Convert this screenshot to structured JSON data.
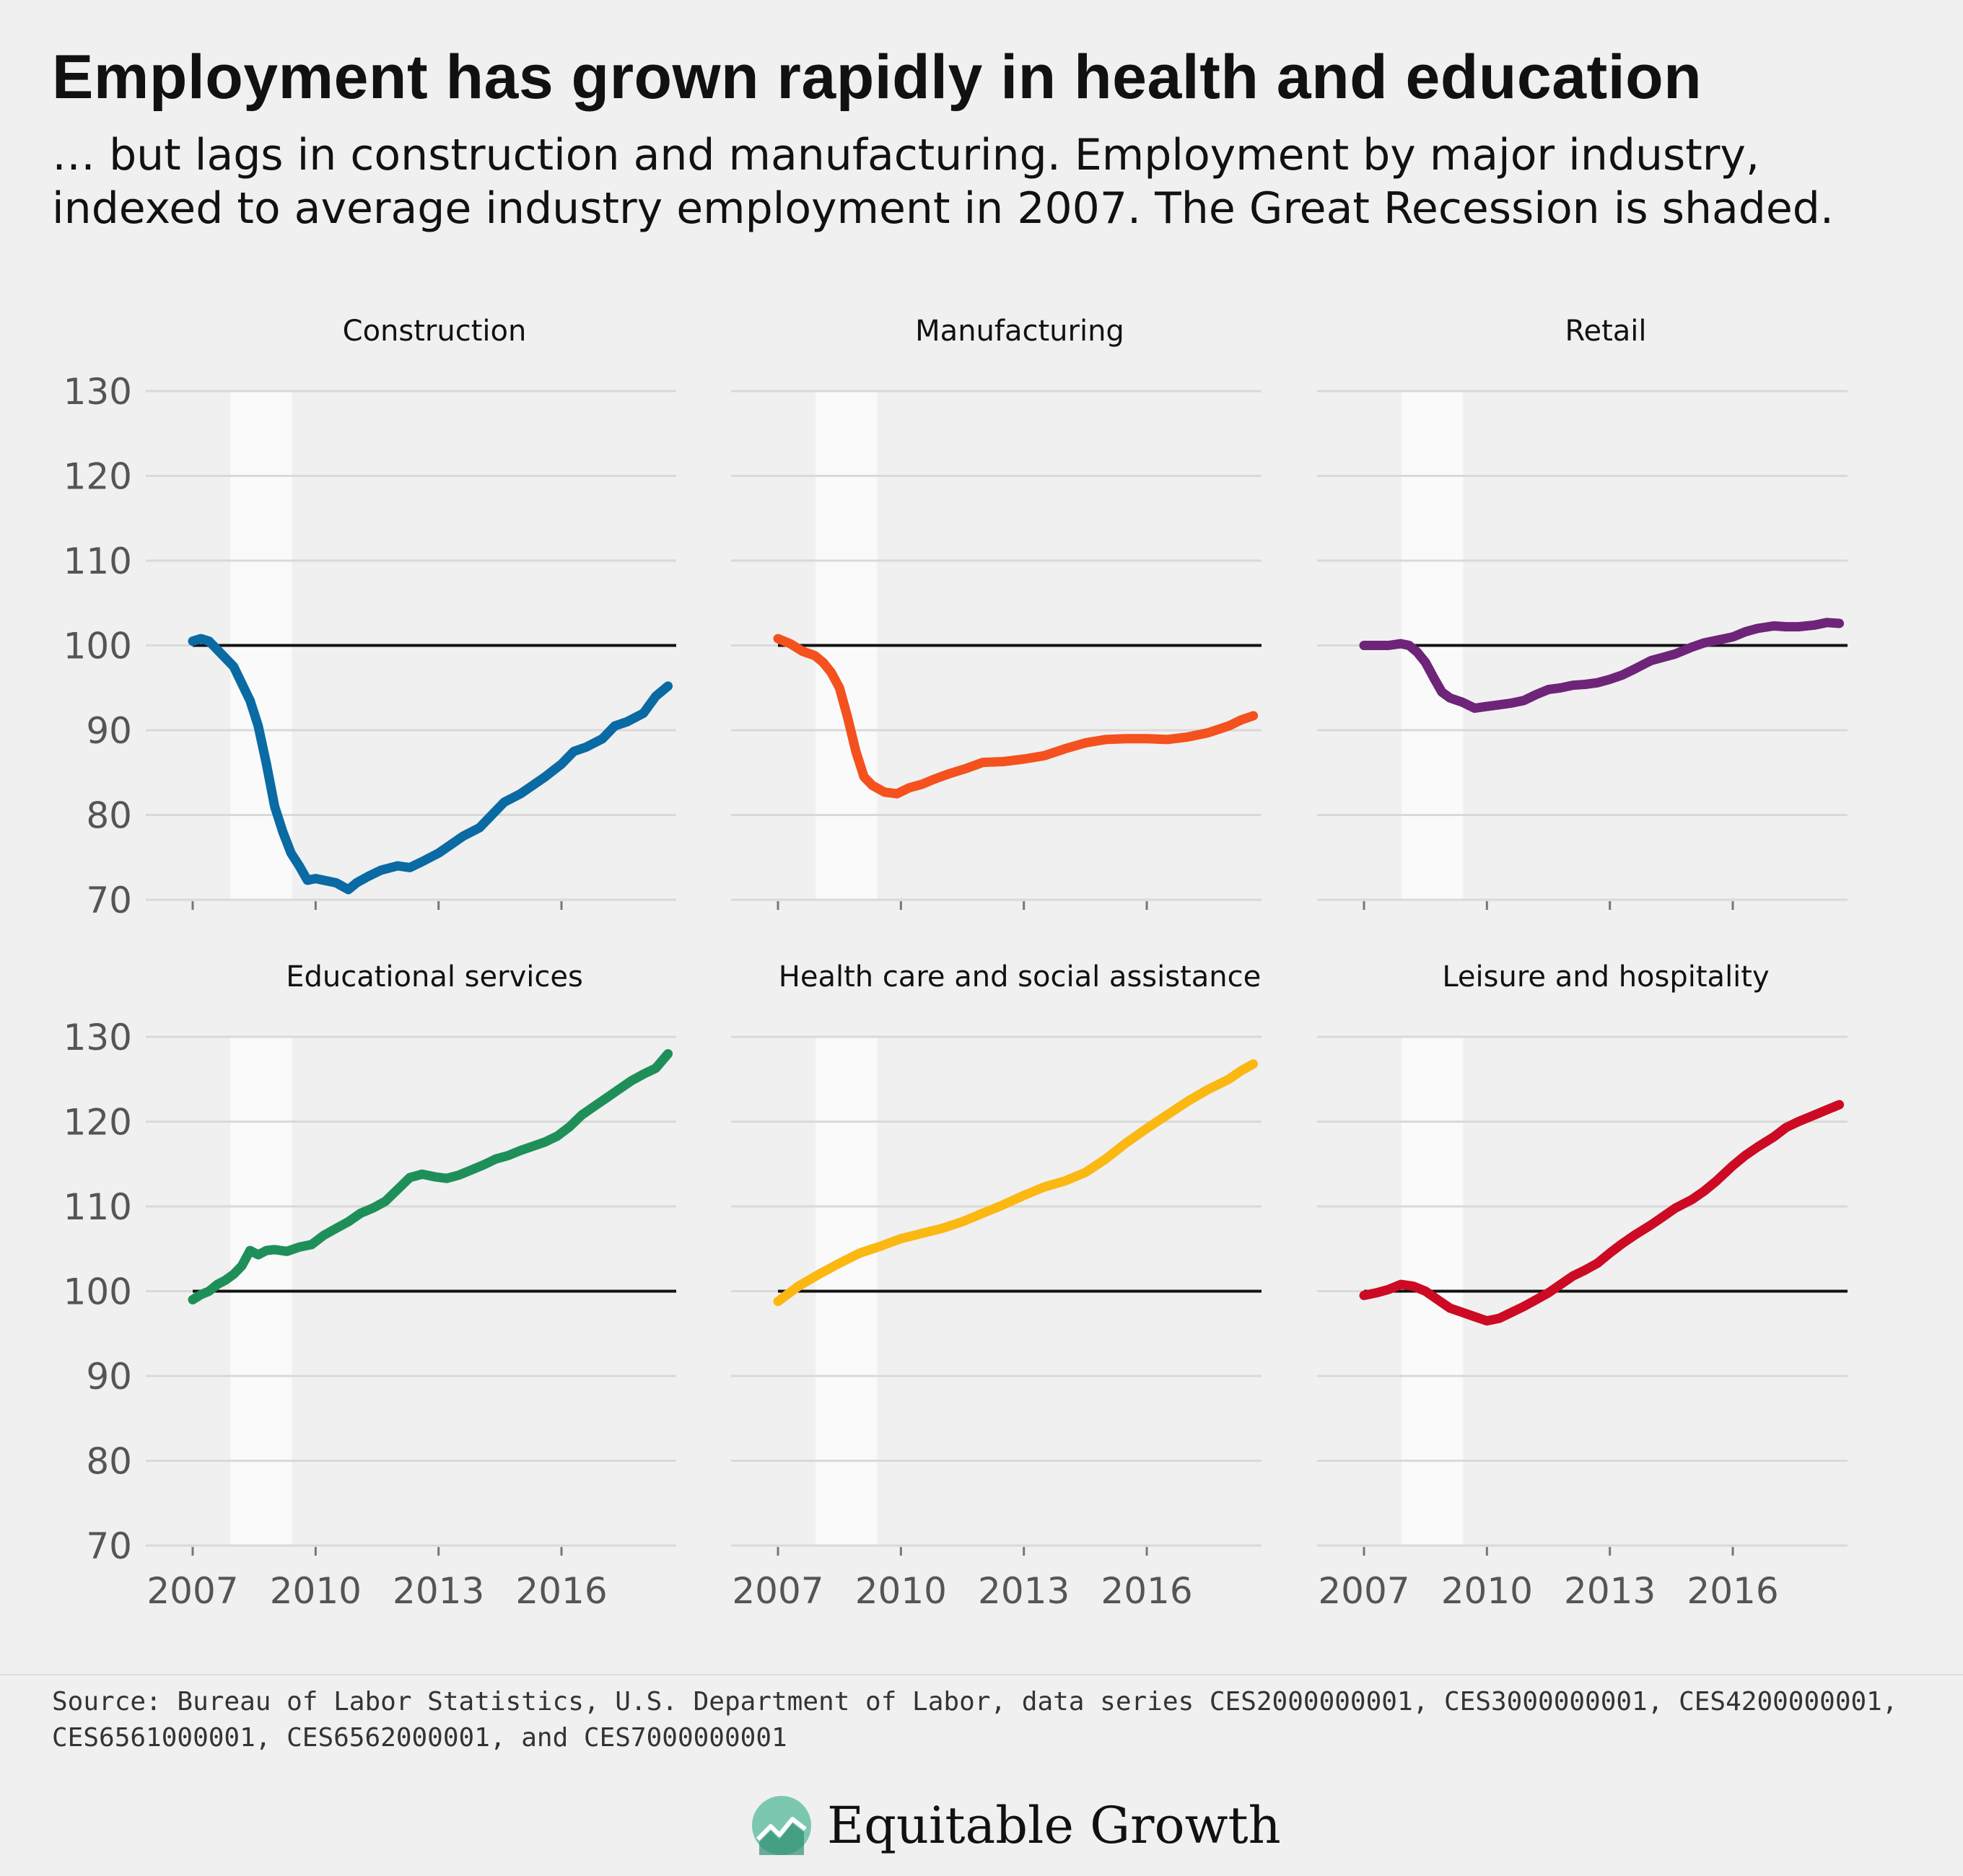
{
  "header": {
    "title": "Employment has grown rapidly in health and education",
    "subtitle": "… but lags in construction and manufacturing. Employment by major industry, indexed to average industry employment in 2007. The Great Recession is shaded."
  },
  "footer": {
    "source": "Source: Bureau of Labor Statistics, U.S. Department of Labor, data series CES2000000001, CES3000000001, CES4200000001, CES6561000001, CES6562000001, and CES7000000001",
    "brand_name": "Equitable Growth",
    "brand_icon": "equitable-growth-logo-icon"
  },
  "chart_data": {
    "type": "line",
    "layout": "small-multiples 3x2",
    "ylim": [
      70,
      130
    ],
    "yticks": [
      70,
      80,
      90,
      100,
      110,
      120,
      130
    ],
    "xlim": [
      2007,
      2018.8
    ],
    "xticks": [
      2007,
      2010,
      2013,
      2016
    ],
    "reference_line": 100,
    "recession_shading": [
      2007.92,
      2009.42
    ],
    "grid": true,
    "panels": [
      {
        "name": "Construction",
        "color": "#0a6aa3",
        "x": [
          2007.0,
          2007.2,
          2007.4,
          2007.6,
          2007.8,
          2008.0,
          2008.2,
          2008.4,
          2008.6,
          2008.8,
          2009.0,
          2009.2,
          2009.4,
          2009.6,
          2009.8,
          2010.0,
          2010.2,
          2010.5,
          2010.8,
          2011.0,
          2011.3,
          2011.6,
          2012.0,
          2012.3,
          2012.6,
          2013.0,
          2013.3,
          2013.6,
          2014.0,
          2014.3,
          2014.6,
          2015.0,
          2015.3,
          2015.6,
          2016.0,
          2016.3,
          2016.6,
          2017.0,
          2017.3,
          2017.6,
          2018.0,
          2018.3,
          2018.6
        ],
        "y": [
          100.5,
          100.8,
          100.5,
          99.5,
          98.5,
          97.5,
          95.5,
          93.5,
          90.5,
          86.0,
          81.0,
          78.0,
          75.5,
          74.0,
          72.3,
          72.5,
          72.3,
          72.0,
          71.2,
          72.0,
          72.8,
          73.5,
          74.0,
          73.8,
          74.5,
          75.5,
          76.5,
          77.5,
          78.5,
          80.0,
          81.5,
          82.5,
          83.5,
          84.5,
          86.0,
          87.5,
          88.0,
          89.0,
          90.5,
          91.0,
          92.0,
          94.0,
          95.2
        ]
      },
      {
        "name": "Manufacturing",
        "color": "#f4511e",
        "x": [
          2007.0,
          2007.3,
          2007.6,
          2007.9,
          2008.1,
          2008.3,
          2008.5,
          2008.7,
          2008.9,
          2009.1,
          2009.3,
          2009.6,
          2009.9,
          2010.2,
          2010.5,
          2010.8,
          2011.2,
          2011.6,
          2012.0,
          2012.5,
          2013.0,
          2013.5,
          2014.0,
          2014.5,
          2015.0,
          2015.5,
          2016.0,
          2016.5,
          2017.0,
          2017.5,
          2018.0,
          2018.3,
          2018.6
        ],
        "y": [
          100.8,
          100.2,
          99.3,
          98.8,
          98.0,
          96.8,
          95.0,
          91.5,
          87.5,
          84.5,
          83.5,
          82.7,
          82.5,
          83.2,
          83.6,
          84.2,
          84.9,
          85.5,
          86.2,
          86.3,
          86.6,
          87.0,
          87.8,
          88.5,
          88.9,
          89.0,
          89.0,
          88.9,
          89.2,
          89.7,
          90.5,
          91.2,
          91.7
        ]
      },
      {
        "name": "Retail",
        "color": "#6e2478",
        "x": [
          2007.0,
          2007.3,
          2007.6,
          2007.9,
          2008.1,
          2008.3,
          2008.5,
          2008.7,
          2008.9,
          2009.1,
          2009.4,
          2009.7,
          2010.0,
          2010.3,
          2010.6,
          2010.9,
          2011.2,
          2011.5,
          2011.8,
          2012.1,
          2012.4,
          2012.7,
          2013.0,
          2013.3,
          2013.6,
          2014.0,
          2014.3,
          2014.6,
          2015.0,
          2015.3,
          2015.6,
          2016.0,
          2016.3,
          2016.6,
          2017.0,
          2017.3,
          2017.6,
          2018.0,
          2018.3,
          2018.6
        ],
        "y": [
          100.0,
          100.0,
          100.0,
          100.2,
          100.0,
          99.2,
          98.0,
          96.2,
          94.5,
          93.8,
          93.3,
          92.6,
          92.8,
          93.0,
          93.2,
          93.5,
          94.2,
          94.8,
          95.0,
          95.3,
          95.4,
          95.6,
          96.0,
          96.5,
          97.2,
          98.2,
          98.6,
          99.0,
          99.8,
          100.3,
          100.6,
          101.0,
          101.6,
          102.0,
          102.3,
          102.2,
          102.2,
          102.4,
          102.7,
          102.6
        ]
      },
      {
        "name": "Educational services",
        "color": "#1f8f5a",
        "x": [
          2007.0,
          2007.2,
          2007.4,
          2007.6,
          2007.8,
          2008.0,
          2008.2,
          2008.4,
          2008.6,
          2008.8,
          2009.0,
          2009.3,
          2009.6,
          2009.9,
          2010.2,
          2010.5,
          2010.8,
          2011.1,
          2011.4,
          2011.7,
          2012.0,
          2012.3,
          2012.6,
          2012.9,
          2013.2,
          2013.5,
          2013.8,
          2014.1,
          2014.4,
          2014.7,
          2015.0,
          2015.3,
          2015.6,
          2015.9,
          2016.2,
          2016.5,
          2016.8,
          2017.1,
          2017.4,
          2017.7,
          2018.0,
          2018.3,
          2018.6
        ],
        "y": [
          99.0,
          99.6,
          100.0,
          100.8,
          101.3,
          102.0,
          103.0,
          104.8,
          104.3,
          104.8,
          104.9,
          104.7,
          105.2,
          105.5,
          106.6,
          107.4,
          108.2,
          109.2,
          109.8,
          110.6,
          112.0,
          113.4,
          113.8,
          113.5,
          113.3,
          113.7,
          114.3,
          114.9,
          115.6,
          116.0,
          116.6,
          117.1,
          117.6,
          118.3,
          119.4,
          120.8,
          121.8,
          122.8,
          123.8,
          124.8,
          125.6,
          126.3,
          128.0
        ]
      },
      {
        "name": "Health care and social assistance",
        "color": "#fbb813",
        "x": [
          2007.0,
          2007.5,
          2008.0,
          2008.5,
          2009.0,
          2009.5,
          2010.0,
          2010.5,
          2011.0,
          2011.5,
          2012.0,
          2012.5,
          2013.0,
          2013.5,
          2014.0,
          2014.5,
          2015.0,
          2015.5,
          2016.0,
          2016.5,
          2017.0,
          2017.5,
          2018.0,
          2018.3,
          2018.6
        ],
        "y": [
          98.8,
          100.6,
          102.0,
          103.3,
          104.5,
          105.3,
          106.2,
          106.8,
          107.4,
          108.2,
          109.2,
          110.2,
          111.3,
          112.3,
          113.0,
          114.0,
          115.6,
          117.5,
          119.2,
          120.8,
          122.4,
          123.8,
          125.0,
          126.0,
          126.8
        ]
      },
      {
        "name": "Leisure and hospitality",
        "color": "#cc0a24",
        "x": [
          2007.0,
          2007.3,
          2007.6,
          2007.9,
          2008.2,
          2008.5,
          2008.8,
          2009.1,
          2009.4,
          2009.7,
          2010.0,
          2010.3,
          2010.6,
          2010.9,
          2011.2,
          2011.5,
          2011.8,
          2012.1,
          2012.4,
          2012.7,
          2013.0,
          2013.3,
          2013.6,
          2014.0,
          2014.3,
          2014.6,
          2015.0,
          2015.3,
          2015.6,
          2016.0,
          2016.3,
          2016.6,
          2017.0,
          2017.3,
          2017.6,
          2018.0,
          2018.3,
          2018.6
        ],
        "y": [
          99.5,
          99.8,
          100.2,
          100.8,
          100.6,
          100.0,
          99.0,
          98.0,
          97.5,
          97.0,
          96.5,
          96.8,
          97.5,
          98.2,
          99.0,
          99.8,
          100.8,
          101.8,
          102.5,
          103.3,
          104.5,
          105.6,
          106.6,
          107.8,
          108.8,
          109.8,
          110.8,
          111.8,
          113.0,
          114.8,
          116.0,
          117.0,
          118.2,
          119.3,
          120.0,
          120.8,
          121.4,
          122.0
        ]
      }
    ]
  }
}
